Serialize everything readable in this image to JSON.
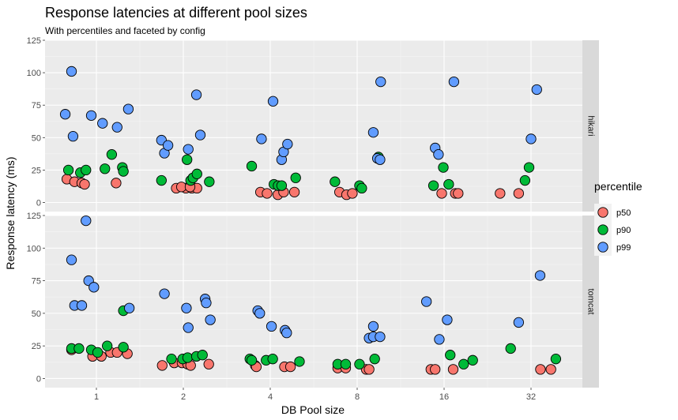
{
  "chart_data": {
    "type": "scatter",
    "title": "Response latencies at different pool sizes",
    "subtitle": "With percentiles and faceted by config",
    "xlabel": "DB Pool size",
    "ylabel": "Response latency (ms)",
    "x_scale": "log2",
    "x_ticks": [
      1,
      2,
      4,
      8,
      16,
      32
    ],
    "x_tick_labels": [
      "1",
      "2",
      "4",
      "8",
      "16",
      "32"
    ],
    "ylim": [
      -7,
      125
    ],
    "y_ticks": [
      0,
      25,
      50,
      75,
      100,
      125
    ],
    "y_tick_labels": [
      "0",
      "25",
      "50",
      "75",
      "100",
      "125"
    ],
    "facets": [
      "hikari",
      "tomcat"
    ],
    "legend": {
      "title": "percentile",
      "position": "right",
      "entries": [
        {
          "label": "p50",
          "color": "#F8766D"
        },
        {
          "label": "p90",
          "color": "#00BA38"
        },
        {
          "label": "p99",
          "color": "#619CFF"
        }
      ]
    },
    "series": [
      {
        "facet": "hikari",
        "name": "p50",
        "color": "#F8766D",
        "points": [
          [
            0.79,
            18
          ],
          [
            0.84,
            16
          ],
          [
            0.89,
            15
          ],
          [
            0.91,
            14
          ],
          [
            1.17,
            15
          ],
          [
            1.89,
            11
          ],
          [
            2.04,
            11
          ],
          [
            2.14,
            11
          ],
          [
            2.23,
            11
          ],
          [
            1.97,
            12
          ],
          [
            2.11,
            12
          ],
          [
            3.7,
            8
          ],
          [
            3.9,
            7
          ],
          [
            4.25,
            6
          ],
          [
            4.45,
            8
          ],
          [
            4.85,
            8
          ],
          [
            6.95,
            8
          ],
          [
            7.35,
            6
          ],
          [
            7.7,
            7
          ],
          [
            15.7,
            7
          ],
          [
            17.5,
            7
          ],
          [
            17.9,
            7
          ],
          [
            25,
            7
          ],
          [
            29,
            7
          ]
        ]
      },
      {
        "facet": "hikari",
        "name": "p90",
        "color": "#00BA38",
        "points": [
          [
            0.8,
            25
          ],
          [
            0.88,
            23
          ],
          [
            0.92,
            25
          ],
          [
            1.07,
            26
          ],
          [
            1.13,
            37
          ],
          [
            1.23,
            27
          ],
          [
            1.24,
            24
          ],
          [
            1.68,
            17
          ],
          [
            2.06,
            33
          ],
          [
            2.12,
            17
          ],
          [
            2.16,
            19
          ],
          [
            2.23,
            22
          ],
          [
            2.46,
            16
          ],
          [
            3.45,
            28
          ],
          [
            4.12,
            14
          ],
          [
            4.26,
            13
          ],
          [
            4.38,
            13
          ],
          [
            4.9,
            19
          ],
          [
            6.7,
            16
          ],
          [
            8.15,
            13
          ],
          [
            8.3,
            11
          ],
          [
            9.48,
            35
          ],
          [
            14.7,
            13
          ],
          [
            15.9,
            27
          ],
          [
            16.6,
            14
          ],
          [
            30.5,
            17
          ],
          [
            31.5,
            27
          ]
        ]
      },
      {
        "facet": "hikari",
        "name": "p99",
        "color": "#619CFF",
        "points": [
          [
            0.78,
            68
          ],
          [
            0.82,
            101
          ],
          [
            0.83,
            51
          ],
          [
            0.96,
            67
          ],
          [
            1.05,
            61
          ],
          [
            1.18,
            58
          ],
          [
            1.29,
            72
          ],
          [
            1.68,
            48
          ],
          [
            1.72,
            38
          ],
          [
            1.77,
            44
          ],
          [
            2.08,
            41
          ],
          [
            2.22,
            83
          ],
          [
            2.29,
            52
          ],
          [
            3.73,
            49
          ],
          [
            4.09,
            78
          ],
          [
            4.38,
            33
          ],
          [
            4.45,
            39
          ],
          [
            4.59,
            45
          ],
          [
            9.1,
            54
          ],
          [
            9.4,
            34
          ],
          [
            9.6,
            33
          ],
          [
            9.65,
            93
          ],
          [
            14.9,
            42
          ],
          [
            15.3,
            37
          ],
          [
            17.3,
            93
          ],
          [
            32,
            49
          ],
          [
            33.5,
            87
          ]
        ]
      },
      {
        "facet": "tomcat",
        "name": "p50",
        "color": "#F8766D",
        "points": [
          [
            0.82,
            22
          ],
          [
            0.97,
            17
          ],
          [
            1.04,
            17
          ],
          [
            1.12,
            20
          ],
          [
            1.18,
            20
          ],
          [
            1.28,
            19
          ],
          [
            1.69,
            10
          ],
          [
            1.86,
            12
          ],
          [
            1.98,
            12
          ],
          [
            2.07,
            11
          ],
          [
            2.12,
            10
          ],
          [
            2.45,
            11
          ],
          [
            3.55,
            10
          ],
          [
            3.58,
            9
          ],
          [
            4.48,
            9
          ],
          [
            4.7,
            9
          ],
          [
            6.85,
            8
          ],
          [
            7.3,
            8
          ],
          [
            8.6,
            7
          ],
          [
            8.8,
            7
          ],
          [
            14.4,
            7
          ],
          [
            14.9,
            7
          ],
          [
            17.2,
            7
          ],
          [
            34.5,
            7
          ],
          [
            37.5,
            7
          ]
        ]
      },
      {
        "facet": "tomcat",
        "name": "p90",
        "color": "#00BA38",
        "points": [
          [
            0.82,
            23
          ],
          [
            0.87,
            23
          ],
          [
            0.96,
            22
          ],
          [
            1.01,
            20
          ],
          [
            1.09,
            25
          ],
          [
            1.24,
            24
          ],
          [
            1.24,
            52
          ],
          [
            1.82,
            15
          ],
          [
            1.99,
            15
          ],
          [
            2.07,
            16
          ],
          [
            2.22,
            17
          ],
          [
            2.33,
            18
          ],
          [
            3.4,
            15
          ],
          [
            3.45,
            14
          ],
          [
            3.87,
            14
          ],
          [
            4.08,
            15
          ],
          [
            5.05,
            13
          ],
          [
            6.85,
            11
          ],
          [
            7.3,
            11
          ],
          [
            8.15,
            11
          ],
          [
            9.2,
            15
          ],
          [
            16.8,
            18
          ],
          [
            18.7,
            11
          ],
          [
            20.1,
            14
          ],
          [
            27.2,
            23
          ],
          [
            39,
            15
          ]
        ]
      },
      {
        "facet": "tomcat",
        "name": "p99",
        "color": "#619CFF",
        "points": [
          [
            0.82,
            91
          ],
          [
            0.84,
            56
          ],
          [
            0.89,
            56
          ],
          [
            0.92,
            121
          ],
          [
            0.94,
            75
          ],
          [
            0.98,
            70
          ],
          [
            1.3,
            54
          ],
          [
            1.72,
            65
          ],
          [
            2.05,
            54
          ],
          [
            2.08,
            39
          ],
          [
            2.38,
            61
          ],
          [
            2.4,
            58
          ],
          [
            2.48,
            45
          ],
          [
            3.62,
            52
          ],
          [
            3.68,
            50
          ],
          [
            4.04,
            40
          ],
          [
            4.5,
            37
          ],
          [
            4.56,
            35
          ],
          [
            8.8,
            31
          ],
          [
            9.1,
            40
          ],
          [
            9.1,
            32
          ],
          [
            9.6,
            32
          ],
          [
            13.9,
            59
          ],
          [
            15.4,
            30
          ],
          [
            16.4,
            45
          ],
          [
            29,
            43
          ],
          [
            34.4,
            79
          ]
        ]
      }
    ]
  }
}
